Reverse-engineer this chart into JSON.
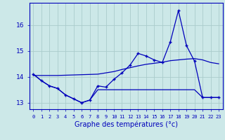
{
  "xlabel": "Graphe des températures (°c)",
  "background_color": "#cce8e8",
  "grid_color": "#aacccc",
  "line_color": "#0000bb",
  "hours": [
    0,
    1,
    2,
    3,
    4,
    5,
    6,
    7,
    8,
    9,
    10,
    11,
    12,
    13,
    14,
    15,
    16,
    17,
    18,
    19,
    20,
    21,
    22,
    23
  ],
  "temp_actual": [
    14.1,
    13.85,
    13.65,
    13.55,
    13.3,
    13.15,
    13.0,
    13.1,
    13.65,
    13.6,
    13.9,
    14.15,
    14.45,
    14.9,
    14.8,
    14.65,
    14.55,
    15.35,
    16.55,
    15.2,
    14.6,
    13.2,
    13.2,
    13.2
  ],
  "temp_min": [
    14.1,
    13.85,
    13.65,
    13.55,
    13.3,
    13.15,
    13.0,
    13.1,
    13.5,
    13.5,
    13.5,
    13.5,
    13.5,
    13.5,
    13.5,
    13.5,
    13.5,
    13.5,
    13.5,
    13.5,
    13.5,
    13.2,
    13.2,
    13.2
  ],
  "temp_trend": [
    14.05,
    14.05,
    14.05,
    14.05,
    14.06,
    14.07,
    14.08,
    14.09,
    14.1,
    14.15,
    14.2,
    14.28,
    14.35,
    14.42,
    14.48,
    14.52,
    14.56,
    14.62,
    14.65,
    14.68,
    14.7,
    14.65,
    14.55,
    14.5
  ],
  "ylim": [
    12.75,
    16.85
  ],
  "yticks": [
    13,
    14,
    15,
    16
  ],
  "xticks": [
    0,
    1,
    2,
    3,
    4,
    5,
    6,
    7,
    8,
    9,
    10,
    11,
    12,
    13,
    14,
    15,
    16,
    17,
    18,
    19,
    20,
    21,
    22,
    23
  ]
}
